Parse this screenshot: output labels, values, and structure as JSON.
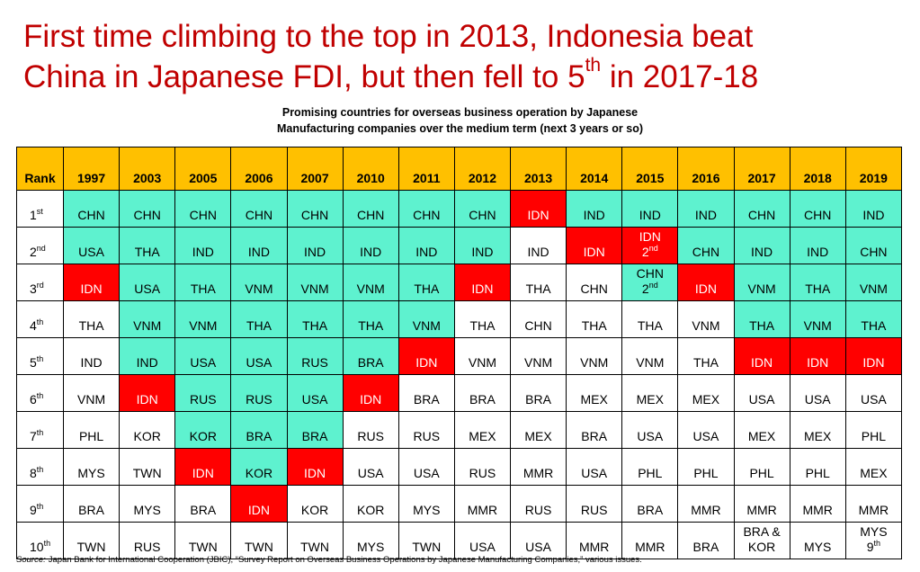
{
  "title": {
    "line1": "First time climbing to the top in 2013, Indonesia beat",
    "line2": {
      "before": "China in Japanese FDI, but then fell to 5",
      "sup": "th",
      "after": "in 2017-18"
    }
  },
  "subtitle": [
    "Promising countries for overseas business operation by Japanese",
    "Manufacturing companies over the medium term (next 3 years or so)"
  ],
  "table": {
    "header": {
      "rank": "Rank",
      "years": [
        "1997",
        "2003",
        "2005",
        "2006",
        "2007",
        "2010",
        "2011",
        "2012",
        "2013",
        "2014",
        "2015",
        "2016",
        "2017",
        "2018",
        "2019"
      ]
    },
    "header_fill": "#ffc000",
    "rows": [
      {
        "rank": {
          "num": "1",
          "suffix": "st"
        },
        "cells": [
          "CHN",
          "CHN",
          "CHN",
          "CHN",
          "CHN",
          "CHN",
          "CHN",
          "CHN",
          "IDN",
          "IND",
          "IND",
          "IND",
          "CHN",
          "CHN",
          "IND"
        ],
        "fills": [
          "#5ef2cf",
          "#5ef2cf",
          "#5ef2cf",
          "#5ef2cf",
          "#5ef2cf",
          "#5ef2cf",
          "#5ef2cf",
          "#5ef2cf",
          "#ff0000",
          "#5ef2cf",
          "#5ef2cf",
          "#5ef2cf",
          "#5ef2cf",
          "#5ef2cf",
          "#5ef2cf"
        ]
      },
      {
        "rank": {
          "num": "2",
          "suffix": "nd"
        },
        "cells": [
          "USA",
          "THA",
          "IND",
          "IND",
          "IND",
          "IND",
          "IND",
          "IND",
          "IND",
          "IDN",
          {
            "text": "IDN",
            "sub": {
              "num": "2",
              "suffix": "nd"
            }
          },
          "CHN",
          "IND",
          "IND",
          "CHN"
        ],
        "fills": [
          "#5ef2cf",
          "#5ef2cf",
          "#5ef2cf",
          "#5ef2cf",
          "#5ef2cf",
          "#5ef2cf",
          "#5ef2cf",
          "#5ef2cf",
          "#ffffff",
          "#ff0000",
          "#ff0000",
          "#5ef2cf",
          "#5ef2cf",
          "#5ef2cf",
          "#5ef2cf"
        ]
      },
      {
        "rank": {
          "num": "3",
          "suffix": "rd"
        },
        "cells": [
          "IDN",
          "USA",
          "THA",
          "VNM",
          "VNM",
          "VNM",
          "THA",
          "IDN",
          "THA",
          "CHN",
          {
            "text": "CHN",
            "sub": {
              "num": "2",
              "suffix": "nd"
            }
          },
          "IDN",
          "VNM",
          "THA",
          "VNM"
        ],
        "fills": [
          "#ff0000",
          "#5ef2cf",
          "#5ef2cf",
          "#5ef2cf",
          "#5ef2cf",
          "#5ef2cf",
          "#5ef2cf",
          "#ff0000",
          "#ffffff",
          "#ffffff",
          "#5ef2cf",
          "#ff0000",
          "#5ef2cf",
          "#5ef2cf",
          "#5ef2cf"
        ]
      },
      {
        "rank": {
          "num": "4",
          "suffix": "th"
        },
        "cells": [
          "THA",
          "VNM",
          "VNM",
          "THA",
          "THA",
          "THA",
          "VNM",
          "THA",
          "CHN",
          "THA",
          "THA",
          "VNM",
          "THA",
          "VNM",
          "THA"
        ],
        "fills": [
          "#ffffff",
          "#5ef2cf",
          "#5ef2cf",
          "#5ef2cf",
          "#5ef2cf",
          "#5ef2cf",
          "#5ef2cf",
          "#ffffff",
          "#ffffff",
          "#ffffff",
          "#ffffff",
          "#ffffff",
          "#5ef2cf",
          "#5ef2cf",
          "#5ef2cf"
        ]
      },
      {
        "rank": {
          "num": "5",
          "suffix": "th"
        },
        "cells": [
          "IND",
          "IND",
          "USA",
          "USA",
          "RUS",
          "BRA",
          "IDN",
          "VNM",
          "VNM",
          "VNM",
          "VNM",
          "THA",
          "IDN",
          "IDN",
          "IDN"
        ],
        "fills": [
          "#ffffff",
          "#5ef2cf",
          "#5ef2cf",
          "#5ef2cf",
          "#5ef2cf",
          "#5ef2cf",
          "#ff0000",
          "#ffffff",
          "#ffffff",
          "#ffffff",
          "#ffffff",
          "#ffffff",
          "#ff0000",
          "#ff0000",
          "#ff0000"
        ]
      },
      {
        "rank": {
          "num": "6",
          "suffix": "th"
        },
        "cells": [
          "VNM",
          "IDN",
          "RUS",
          "RUS",
          "USA",
          "IDN",
          "BRA",
          "BRA",
          "BRA",
          "MEX",
          "MEX",
          "MEX",
          "USA",
          "USA",
          "USA"
        ],
        "fills": [
          "#ffffff",
          "#ff0000",
          "#5ef2cf",
          "#5ef2cf",
          "#5ef2cf",
          "#ff0000",
          "#ffffff",
          "#ffffff",
          "#ffffff",
          "#ffffff",
          "#ffffff",
          "#ffffff",
          "#ffffff",
          "#ffffff",
          "#ffffff"
        ]
      },
      {
        "rank": {
          "num": "7",
          "suffix": "th"
        },
        "cells": [
          "PHL",
          "KOR",
          "KOR",
          "BRA",
          "BRA",
          "RUS",
          "RUS",
          "MEX",
          "MEX",
          "BRA",
          "USA",
          "USA",
          "MEX",
          "MEX",
          "PHL"
        ],
        "fills": [
          "#ffffff",
          "#ffffff",
          "#5ef2cf",
          "#5ef2cf",
          "#5ef2cf",
          "#ffffff",
          "#ffffff",
          "#ffffff",
          "#ffffff",
          "#ffffff",
          "#ffffff",
          "#ffffff",
          "#ffffff",
          "#ffffff",
          "#ffffff"
        ]
      },
      {
        "rank": {
          "num": "8",
          "suffix": "th"
        },
        "cells": [
          "MYS",
          "TWN",
          "IDN",
          "KOR",
          "IDN",
          "USA",
          "USA",
          "RUS",
          "MMR",
          "USA",
          "PHL",
          "PHL",
          "PHL",
          "PHL",
          "MEX"
        ],
        "fills": [
          "#ffffff",
          "#ffffff",
          "#ff0000",
          "#5ef2cf",
          "#ff0000",
          "#ffffff",
          "#ffffff",
          "#ffffff",
          "#ffffff",
          "#ffffff",
          "#ffffff",
          "#ffffff",
          "#ffffff",
          "#ffffff",
          "#ffffff"
        ]
      },
      {
        "rank": {
          "num": "9",
          "suffix": "th"
        },
        "cells": [
          "BRA",
          "MYS",
          "BRA",
          "IDN",
          "KOR",
          "KOR",
          "MYS",
          "MMR",
          "RUS",
          "RUS",
          "BRA",
          "MMR",
          "MMR",
          "MMR",
          "MMR"
        ],
        "fills": [
          "#ffffff",
          "#ffffff",
          "#ffffff",
          "#ff0000",
          "#ffffff",
          "#ffffff",
          "#ffffff",
          "#ffffff",
          "#ffffff",
          "#ffffff",
          "#ffffff",
          "#ffffff",
          "#ffffff",
          "#ffffff",
          "#ffffff"
        ]
      },
      {
        "rank": {
          "num": "10",
          "suffix": "th"
        },
        "cells": [
          "TWN",
          "RUS",
          "TWN",
          "TWN",
          "TWN",
          "MYS",
          "TWN",
          "USA",
          "USA",
          "MMR",
          "MMR",
          "BRA",
          {
            "lines": [
              "BRA &",
              "KOR"
            ]
          },
          "MYS",
          {
            "text": "MYS",
            "sub": {
              "num": "9",
              "suffix": "th"
            }
          }
        ],
        "fills": [
          "#ffffff",
          "#ffffff",
          "#ffffff",
          "#ffffff",
          "#ffffff",
          "#ffffff",
          "#ffffff",
          "#ffffff",
          "#ffffff",
          "#ffffff",
          "#ffffff",
          "#ffffff",
          "#ffffff",
          "#ffffff",
          "#ffffff"
        ]
      }
    ]
  },
  "source": {
    "label": "Source:",
    "text": "Japan Bank for International Cooperation (JBIC), “Survey Report on Overseas Business Operations by Japanese Manufacturing Companies,” various issues."
  }
}
